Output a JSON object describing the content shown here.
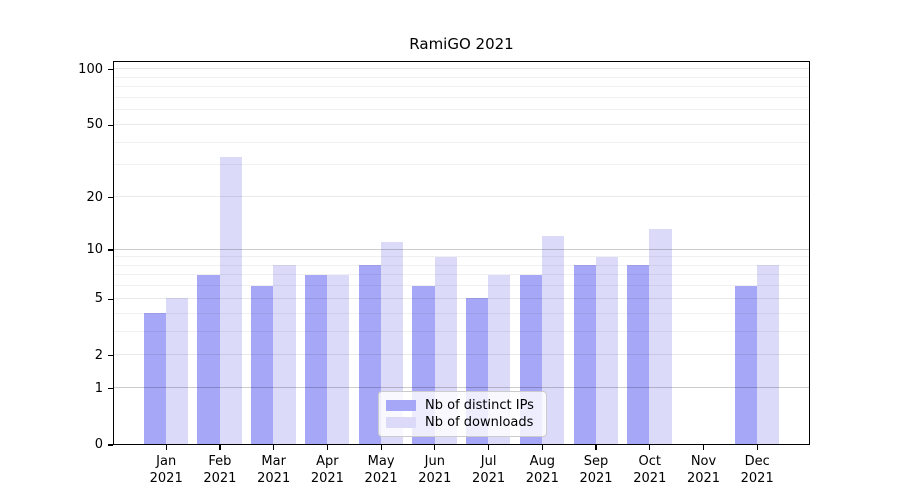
{
  "chart_data": {
    "type": "bar",
    "title": "RamiGO 2021",
    "categories": [
      "Jan",
      "Feb",
      "Mar",
      "Apr",
      "May",
      "Jun",
      "Jul",
      "Aug",
      "Sep",
      "Oct",
      "Nov",
      "Dec"
    ],
    "x_tick_year": "2021",
    "series": [
      {
        "name": "Nb of distinct IPs",
        "color": "#a7a7f7",
        "values": [
          4,
          7,
          6,
          7,
          8,
          6,
          5,
          7,
          8,
          8,
          0,
          6
        ]
      },
      {
        "name": "Nb of downloads",
        "color": "#dbdbf9",
        "values": [
          5,
          33,
          8,
          7,
          11,
          9,
          7,
          12,
          9,
          13,
          0,
          8
        ]
      }
    ],
    "y_axis": {
      "scale": "log1p",
      "ticks": [
        0,
        1,
        2,
        5,
        10,
        20,
        50,
        100
      ],
      "minor_gridlines": [
        3,
        4,
        6,
        7,
        8,
        9,
        30,
        40,
        60,
        70,
        80,
        90
      ],
      "range_top": 110
    },
    "grid": true,
    "legend_position": "lower-center",
    "colors": {
      "axis": "#000000",
      "decade_gridline": "rgba(0,0,0,0.20)",
      "major_gridline": "rgba(0,0,0,0.085)",
      "minor_gridline": "rgba(0,0,0,0.06)",
      "hundred_gridline": "rgba(0,0,0,0.10)"
    }
  }
}
